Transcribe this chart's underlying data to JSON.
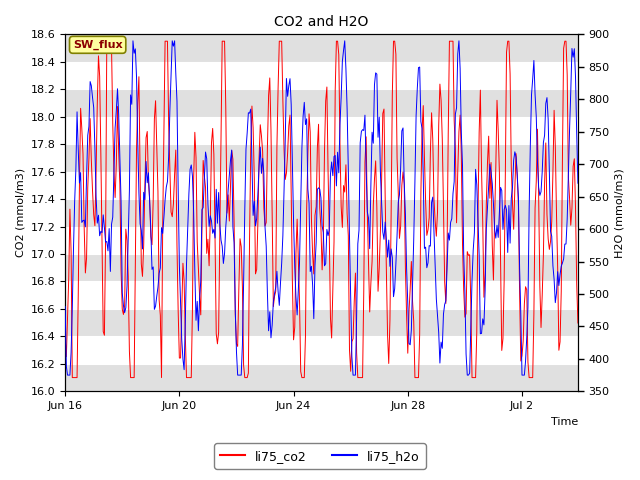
{
  "title": "CO2 and H2O",
  "xlabel": "Time",
  "ylabel_left": "CO2 (mmol/m3)",
  "ylabel_right": "H2O (mmol/m3)",
  "ylim_left": [
    16.0,
    18.6
  ],
  "ylim_right": [
    350,
    900
  ],
  "yticks_left": [
    16.0,
    16.2,
    16.4,
    16.6,
    16.8,
    17.0,
    17.2,
    17.4,
    17.6,
    17.8,
    18.0,
    18.2,
    18.4,
    18.6
  ],
  "yticks_right": [
    350,
    400,
    450,
    500,
    550,
    600,
    650,
    700,
    750,
    800,
    850,
    900
  ],
  "xtick_labels": [
    "Jun 16",
    "Jun 20",
    "Jun 24",
    "Jun 28",
    "Jul 2"
  ],
  "xtick_positions": [
    0,
    96,
    192,
    288,
    384
  ],
  "legend_labels": [
    "li75_co2",
    "li75_h2o"
  ],
  "legend_colors": [
    "red",
    "blue"
  ],
  "sw_flux_label": "SW_flux",
  "sw_flux_bg": "#ffffa0",
  "sw_flux_border": "#808000",
  "line_color_co2": "red",
  "line_color_h2o": "blue",
  "plot_bg": "#ffffff",
  "band_color": "#e0e0e0",
  "n_points": 432
}
